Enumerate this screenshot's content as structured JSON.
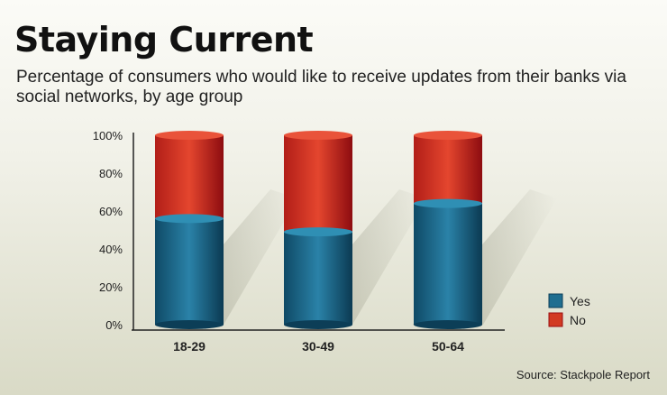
{
  "colors": {
    "yes": "#1f6e90",
    "yes_dark": "#0c3e57",
    "yes_light": "#2f8fb4",
    "no": "#d23a22",
    "no_dark": "#9a0f12",
    "no_light": "#e9533a"
  },
  "chart_data": {
    "type": "bar",
    "stacked": true,
    "title": "Staying Current",
    "subtitle": "Percentage of consumers who would like to receive updates from their banks via social networks, by age group",
    "categories": [
      "18-29",
      "30-49",
      "50-64"
    ],
    "series": [
      {
        "name": "Yes",
        "color": "#1f6e90",
        "values": [
          56,
          49,
          64
        ]
      },
      {
        "name": "No",
        "color": "#d23a22",
        "values": [
          44,
          51,
          36
        ]
      }
    ],
    "y_ticks": [
      "0%",
      "20%",
      "40%",
      "60%",
      "80%",
      "100%"
    ],
    "ylim": [
      0,
      100
    ],
    "xlabel": "",
    "ylabel": "",
    "grid": false,
    "legend": {
      "position": "bottom-right",
      "entries": [
        "Yes",
        "No"
      ]
    },
    "source": "Source: Stackpole Report"
  }
}
